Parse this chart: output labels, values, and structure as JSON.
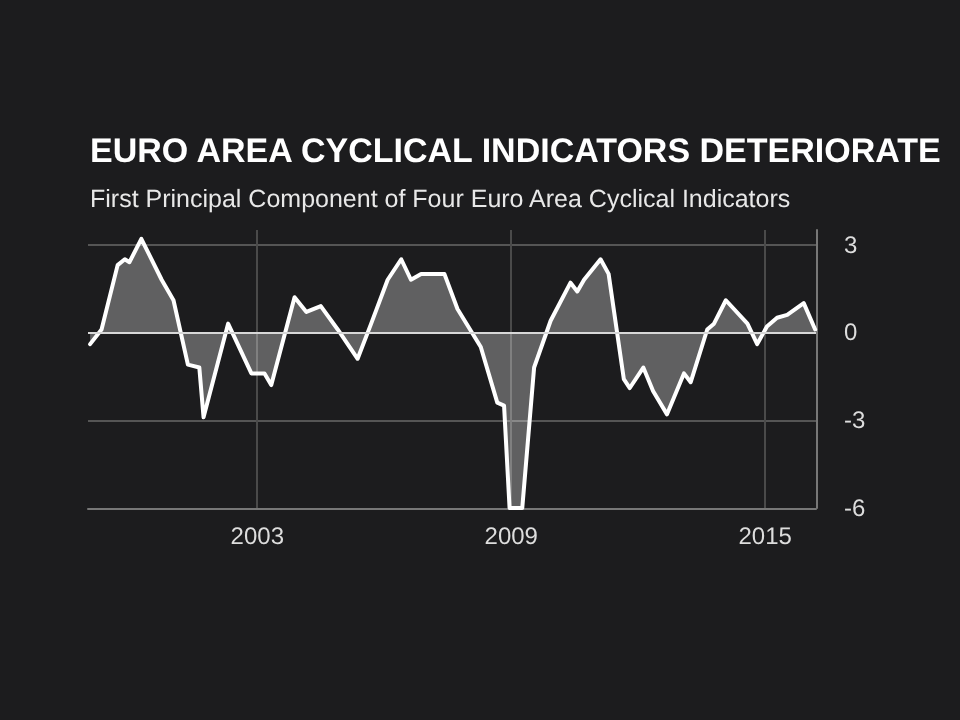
{
  "chart_data": {
    "type": "area",
    "title": "EURO AREA CYCLICAL INDICATORS DETERIORATE",
    "subtitle": "First Principal Component of Four Euro Area Cyclical Indicators",
    "x": [
      1999.05,
      1999.32,
      1999.7,
      1999.87,
      1999.98,
      2000.26,
      2000.74,
      2001.02,
      2001.36,
      2001.63,
      2001.73,
      2002.31,
      2002.86,
      2003.17,
      2003.33,
      2003.88,
      2004.16,
      2004.5,
      2004.9,
      2005.37,
      2005.69,
      2006.08,
      2006.4,
      2006.63,
      2006.87,
      2007.42,
      2007.73,
      2008.28,
      2008.67,
      2008.83,
      2008.96,
      2009.26,
      2009.54,
      2009.93,
      2010.4,
      2010.56,
      2010.72,
      2011.11,
      2011.3,
      2011.66,
      2011.8,
      2012.12,
      2012.35,
      2012.68,
      2013.08,
      2013.24,
      2013.63,
      2013.79,
      2014.07,
      2014.58,
      2014.81,
      2015.04,
      2015.28,
      2015.52,
      2015.91,
      2016.18
    ],
    "series": [
      {
        "color": "#ffffff",
        "values": [
          -0.4,
          0.1,
          2.3,
          2.5,
          2.4,
          3.2,
          1.8,
          1.1,
          -1.1,
          -1.2,
          -2.9,
          0.3,
          -1.4,
          -1.4,
          -1.8,
          1.2,
          0.7,
          0.9,
          0.1,
          -0.9,
          0.3,
          1.8,
          2.5,
          1.8,
          2.0,
          2.0,
          0.8,
          -0.5,
          -2.4,
          -2.5,
          -6,
          -6,
          -1.2,
          0.4,
          1.7,
          1.4,
          1.8,
          2.5,
          2.0,
          -1.6,
          -1.9,
          -1.2,
          -2.0,
          -2.8,
          -1.4,
          -1.7,
          0.1,
          0.3,
          1.1,
          0.3,
          -0.4,
          0.2,
          0.5,
          0.6,
          1.0,
          0.1
        ]
      }
    ],
    "xlim": [
      1999,
      2016.2
    ],
    "xticks": [
      2003,
      2009,
      2015
    ],
    "ylim": [
      -6,
      3.5
    ],
    "yticks": [
      -6,
      -3,
      0,
      3
    ],
    "grid": true,
    "marker": "none",
    "line_style": "solid"
  }
}
